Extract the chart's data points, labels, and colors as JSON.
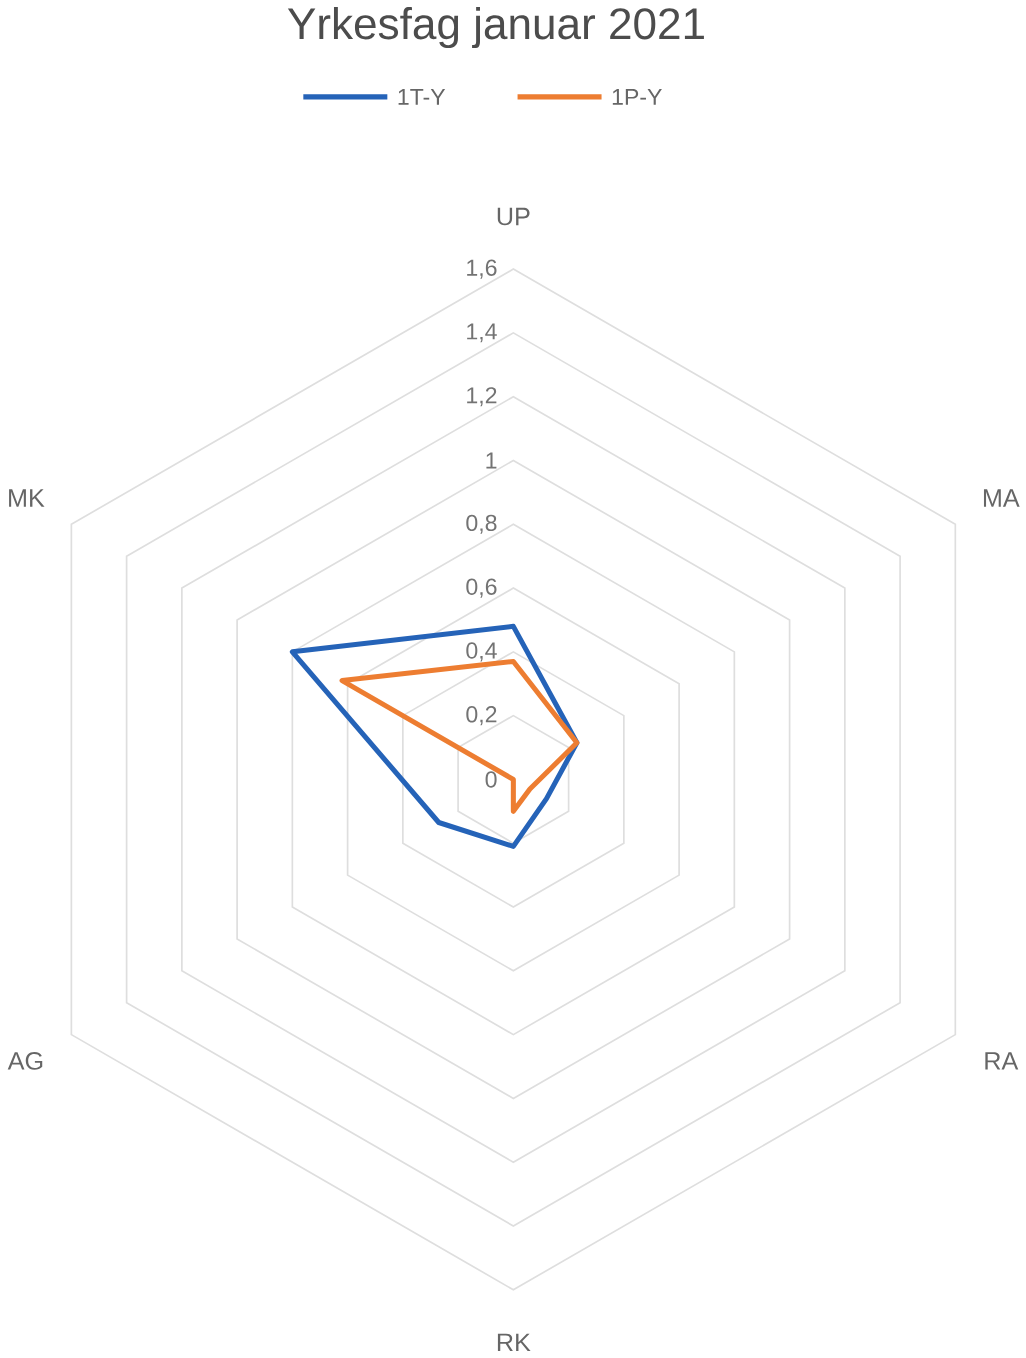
{
  "chart_data": {
    "type": "radar",
    "title": "Yrkesfag januar 2021",
    "categories": [
      "UP",
      "MA",
      "RA",
      "RK",
      "AG",
      "MK"
    ],
    "series": [
      {
        "name": "1T-Y",
        "color": "#2563b8",
        "values": [
          0.48,
          0.23,
          0.12,
          0.21,
          0.27,
          0.8
        ]
      },
      {
        "name": "1P-Y",
        "color": "#ed7d31",
        "values": [
          0.37,
          0.23,
          0.06,
          0.1,
          0,
          0.62
        ]
      }
    ],
    "ylim": [
      0,
      1.6
    ],
    "yticks": [
      0,
      {
        "value": 0.2,
        "label": "0,2"
      },
      {
        "value": 0.4,
        "label": "0,4"
      },
      {
        "value": 0.6,
        "label": "0,6"
      },
      {
        "value": 0.8,
        "label": "0,8"
      },
      1,
      {
        "value": 1.2,
        "label": "1,2"
      },
      {
        "value": 1.4,
        "label": "1,4"
      },
      {
        "value": 1.6,
        "label": "1,6"
      }
    ],
    "grid": true,
    "legend": "top",
    "marker": "none"
  }
}
